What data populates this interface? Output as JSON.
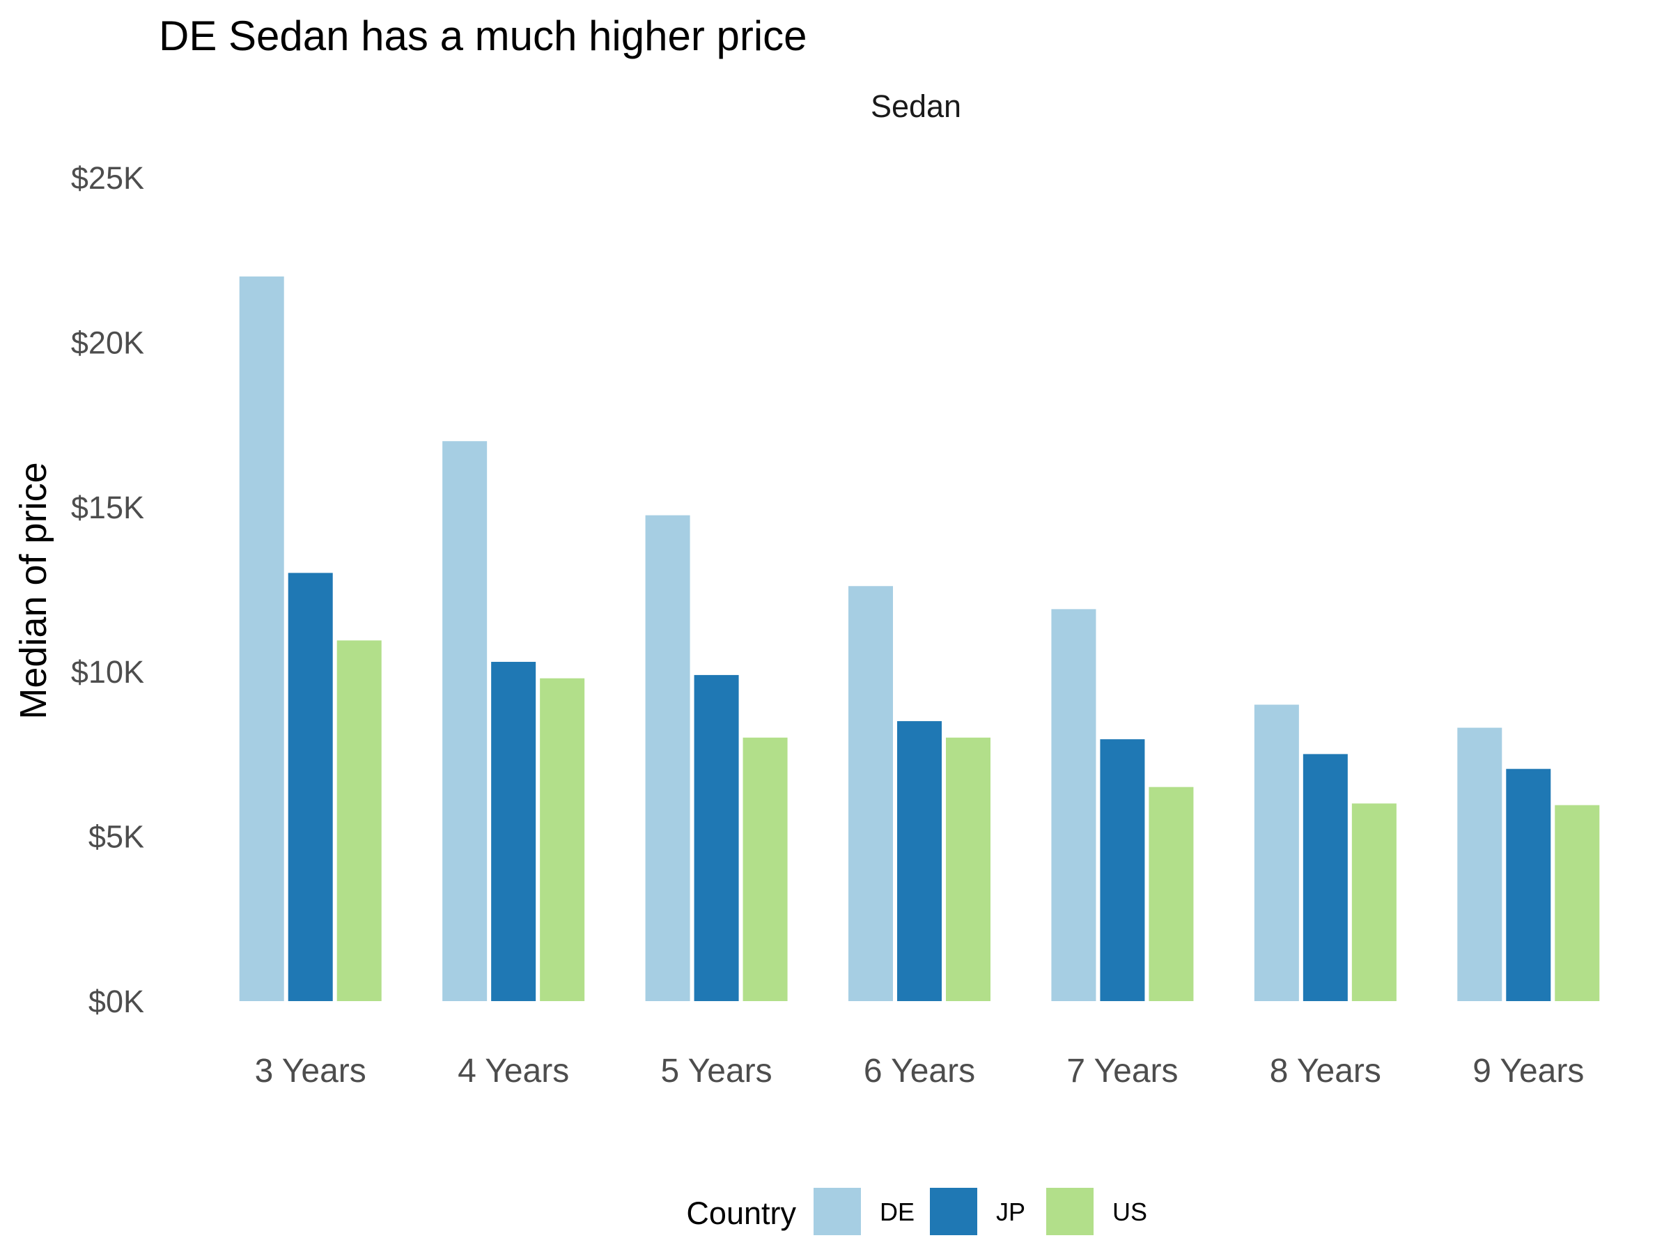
{
  "chart_data": {
    "type": "bar",
    "title": "DE Sedan has a much higher price",
    "facet_label": "Sedan",
    "xlabel": "",
    "ylabel": "Median of price",
    "categories": [
      "3 Years",
      "4 Years",
      "5 Years",
      "6 Years",
      "7 Years",
      "8 Years",
      "9 Years"
    ],
    "series": [
      {
        "name": "DE",
        "color": "#A6CEE3",
        "values": [
          22000,
          17000,
          14750,
          12600,
          11900,
          9000,
          8300
        ]
      },
      {
        "name": "JP",
        "color": "#1F78B4",
        "values": [
          13000,
          10300,
          9900,
          8500,
          7950,
          7500,
          7050
        ]
      },
      {
        "name": "US",
        "color": "#B2DF8A",
        "values": [
          10950,
          9800,
          8000,
          8000,
          6500,
          6000,
          5950
        ]
      }
    ],
    "y_ticks": [
      {
        "value": 0,
        "label": "$0K"
      },
      {
        "value": 5000,
        "label": "$5K"
      },
      {
        "value": 10000,
        "label": "$10K"
      },
      {
        "value": 15000,
        "label": "$15K"
      },
      {
        "value": 20000,
        "label": "$20K"
      },
      {
        "value": 25000,
        "label": "$25K"
      }
    ],
    "ylim": [
      0,
      25000
    ],
    "grid": false,
    "legend": {
      "title": "Country",
      "position": "bottom"
    }
  }
}
